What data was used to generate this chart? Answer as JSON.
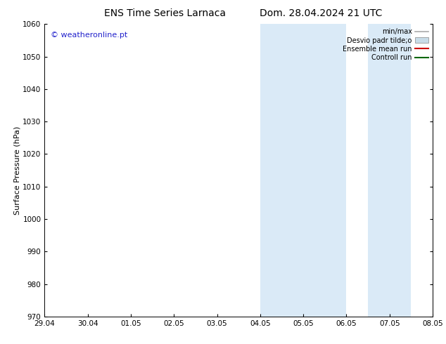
{
  "title_left": "ENS Time Series Larnaca",
  "title_right": "Dom. 28.04.2024 21 UTC",
  "ylabel": "Surface Pressure (hPa)",
  "ylim": [
    970,
    1060
  ],
  "yticks": [
    970,
    980,
    990,
    1000,
    1010,
    1020,
    1030,
    1040,
    1050,
    1060
  ],
  "xtick_labels": [
    "29.04",
    "30.04",
    "01.05",
    "02.05",
    "03.05",
    "04.05",
    "05.05",
    "06.05",
    "07.05",
    "08.05"
  ],
  "xtick_positions": [
    0,
    1,
    2,
    3,
    4,
    5,
    6,
    7,
    8,
    9
  ],
  "shaded_bands": [
    {
      "x_start": 5,
      "x_end": 7,
      "color": "#daeaf7"
    },
    {
      "x_start": 7.5,
      "x_end": 8.5,
      "color": "#daeaf7"
    }
  ],
  "watermark": "© weatheronline.pt",
  "watermark_color": "#2222cc",
  "legend_items": [
    {
      "label": "min/max",
      "color": "#aaaaaa",
      "style": "line",
      "linewidth": 1.2
    },
    {
      "label": "Desvio padr tilde;o",
      "color": "#c8dce8",
      "style": "rect"
    },
    {
      "label": "Ensemble mean run",
      "color": "#cc0000",
      "style": "line",
      "linewidth": 1.5
    },
    {
      "label": "Controll run",
      "color": "#006600",
      "style": "line",
      "linewidth": 1.5
    }
  ],
  "background_color": "#ffffff",
  "title_fontsize": 10,
  "tick_fontsize": 7.5,
  "ylabel_fontsize": 8,
  "legend_fontsize": 7,
  "watermark_fontsize": 8
}
